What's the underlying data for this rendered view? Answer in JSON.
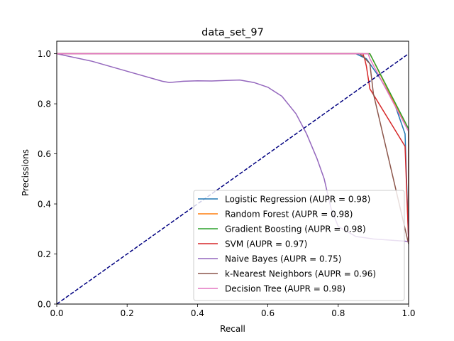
{
  "chart_data": {
    "type": "line",
    "title": "data_set_97",
    "xlabel": "Recall",
    "ylabel": "Precissions",
    "xlim": [
      0,
      1
    ],
    "ylim": [
      0,
      1.05
    ],
    "xticks": [
      0.0,
      0.2,
      0.4,
      0.6,
      0.8,
      1.0
    ],
    "yticks": [
      0.0,
      0.2,
      0.4,
      0.6,
      0.8,
      1.0
    ],
    "xtick_labels": [
      "0.0",
      "0.2",
      "0.4",
      "0.6",
      "0.8",
      "1.0"
    ],
    "ytick_labels": [
      "0.0",
      "0.2",
      "0.4",
      "0.6",
      "0.8",
      "1.0"
    ],
    "grid": false,
    "legend_position": "lower-right",
    "legend": [
      "Logistic Regression (AUPR = 0.98)",
      "Random Forest (AUPR = 0.98)",
      "Gradient Boosting (AUPR = 0.98)",
      "SVM (AUPR = 0.97)",
      "Naive Bayes (AUPR = 0.75)",
      "k-Nearest Neighbors (AUPR = 0.96)",
      "Decision Tree (AUPR = 0.98)"
    ],
    "baseline": {
      "x": [
        0,
        1
      ],
      "y": [
        0,
        1
      ],
      "color": "#000080",
      "style": "dashed"
    },
    "series": [
      {
        "name": "Logistic Regression",
        "color": "#1f77b4",
        "x": [
          0.0,
          0.85,
          0.88,
          0.92,
          0.96,
          0.99,
          1.0
        ],
        "y": [
          1.0,
          1.0,
          0.98,
          0.9,
          0.8,
          0.68,
          0.25
        ]
      },
      {
        "name": "Random Forest",
        "color": "#ff7f0e",
        "x": [
          0.0,
          0.88,
          0.89,
          1.0,
          1.0
        ],
        "y": [
          1.0,
          1.0,
          1.0,
          0.69,
          0.25
        ]
      },
      {
        "name": "Gradient Boosting",
        "color": "#2ca02c",
        "x": [
          0.0,
          0.89,
          1.0,
          1.0
        ],
        "y": [
          1.0,
          1.0,
          0.7,
          0.25
        ]
      },
      {
        "name": "SVM",
        "color": "#d62728",
        "x": [
          0.0,
          0.87,
          0.875,
          0.88,
          0.89,
          0.99,
          1.0
        ],
        "y": [
          1.0,
          1.0,
          0.98,
          0.95,
          0.86,
          0.63,
          0.25
        ]
      },
      {
        "name": "Naive Bayes",
        "color": "#9467bd",
        "x": [
          0.0,
          0.1,
          0.2,
          0.3,
          0.32,
          0.36,
          0.4,
          0.44,
          0.48,
          0.52,
          0.56,
          0.6,
          0.64,
          0.68,
          0.71,
          0.74,
          0.76,
          0.77,
          0.78,
          0.8,
          0.85,
          0.9,
          0.95,
          1.0
        ],
        "y": [
          1.0,
          0.97,
          0.93,
          0.89,
          0.885,
          0.89,
          0.892,
          0.891,
          0.893,
          0.895,
          0.885,
          0.866,
          0.83,
          0.76,
          0.68,
          0.58,
          0.5,
          0.44,
          0.38,
          0.31,
          0.27,
          0.26,
          0.255,
          0.25
        ]
      },
      {
        "name": "k-Nearest Neighbors",
        "color": "#8c564b",
        "x": [
          0.0,
          0.86,
          0.87,
          0.89,
          0.9,
          1.0
        ],
        "y": [
          1.0,
          1.0,
          0.99,
          0.96,
          0.84,
          0.24
        ]
      },
      {
        "name": "Decision Tree",
        "color": "#e377c2",
        "x": [
          0.0,
          0.885,
          0.89,
          1.0,
          1.0
        ],
        "y": [
          1.0,
          1.0,
          0.98,
          0.69,
          0.25
        ]
      }
    ]
  }
}
